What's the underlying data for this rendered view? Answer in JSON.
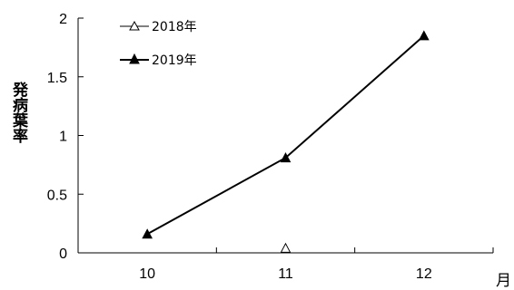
{
  "chart_data": {
    "type": "line",
    "categories": [
      "10",
      "11",
      "12"
    ],
    "xlabel": "月",
    "ylabel": "発病葉率",
    "ylim": [
      0,
      2
    ],
    "yticks": [
      "0",
      "0.5",
      "1",
      "1.5",
      "2"
    ],
    "grid": false,
    "legend_position": "top-left",
    "series": [
      {
        "name": "2018年",
        "marker": "open-triangle",
        "color": "#000000",
        "values": [
          null,
          0.04,
          null
        ]
      },
      {
        "name": "2019年",
        "marker": "filled-triangle",
        "color": "#000000",
        "values": [
          0.16,
          0.81,
          1.85
        ]
      }
    ]
  }
}
